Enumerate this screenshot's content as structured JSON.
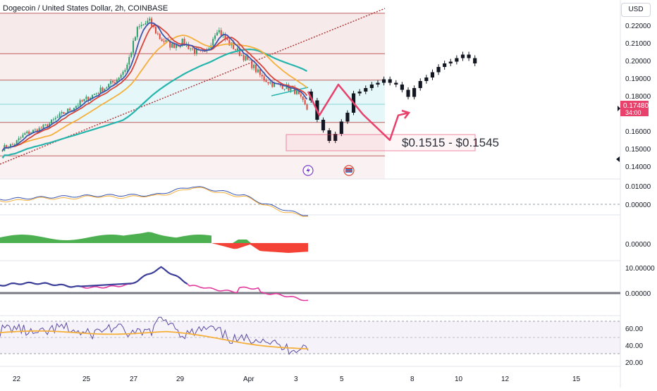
{
  "header": {
    "title": "Dogecoin / United States Dollar, 2h, COINBASE",
    "currency_button": "USD"
  },
  "colors": {
    "up": "#2f9e6a",
    "down": "#e0493b",
    "ma_blue": "#3a56b0",
    "ma_red": "#d6453a",
    "ma_orange": "#f5b03b",
    "ma_teal": "#26b5ac",
    "projection": "#e8416b",
    "zone_fill": "#f6eaea",
    "support_fill": "#e6f7fa",
    "hist_green": "#4caf50",
    "hist_red": "#f44336",
    "price_tag": "#e8416b",
    "rsi_line": "#5b4aa0",
    "rsi_ma": "#f5b03b",
    "osc_blue": "#3b3f99",
    "osc_pink": "#e23a9e"
  },
  "price_panel": {
    "y_ticks": [
      "0.22000",
      "0.21000",
      "0.20000",
      "0.19000",
      "0.18000",
      "0.16000",
      "0.15000",
      "0.14000"
    ],
    "current_price": "0.17480",
    "countdown": "34:00",
    "target_range_label": "$0.1515 - $0.1545"
  },
  "macd_panel": {
    "y_ticks": [
      "0.01000",
      "0.00000"
    ]
  },
  "histogram_panel": {
    "y_ticks": [
      "0.00000"
    ]
  },
  "osc_panel": {
    "y_ticks": [
      "10.00000",
      "0.00000"
    ]
  },
  "rsi_panel": {
    "y_ticks": [
      "60.00",
      "40.00",
      "20.00"
    ]
  },
  "x_axis": {
    "ticks": [
      "22",
      "25",
      "27",
      "29",
      "Apr",
      "3",
      "5",
      "8",
      "10",
      "12",
      "15"
    ]
  },
  "chart_data": {
    "type": "candlestick",
    "title": "Dogecoin / United States Dollar, 2h, COINBASE",
    "ylim": [
      0.135,
      0.228
    ],
    "y_scale": "log",
    "horizontal_levels": [
      0.2265,
      0.2035,
      0.1885,
      0.1748,
      0.1645,
      0.1455
    ],
    "target_zone": [
      0.1515,
      0.1545
    ],
    "historical_close_sample": [
      0.15,
      0.152,
      0.158,
      0.16,
      0.163,
      0.168,
      0.172,
      0.176,
      0.18,
      0.184,
      0.188,
      0.196,
      0.218,
      0.222,
      0.212,
      0.208,
      0.21,
      0.205,
      0.203,
      0.218,
      0.21,
      0.204,
      0.198,
      0.19,
      0.186,
      0.185,
      0.182,
      0.172
    ],
    "projected_path": [
      0.182,
      0.1685,
      0.186,
      0.169,
      0.1545,
      0.1685,
      0.17
    ],
    "projected_candles": [
      0.177,
      0.166,
      0.16,
      0.154,
      0.158,
      0.165,
      0.17,
      0.181,
      0.182,
      0.184,
      0.186,
      0.187,
      0.189,
      0.187,
      0.186,
      0.183,
      0.179,
      0.184,
      0.188,
      0.19,
      0.193,
      0.196,
      0.198,
      0.199,
      0.201,
      0.203,
      0.201,
      0.198
    ],
    "rsi_levels": [
      70,
      50,
      30
    ]
  }
}
